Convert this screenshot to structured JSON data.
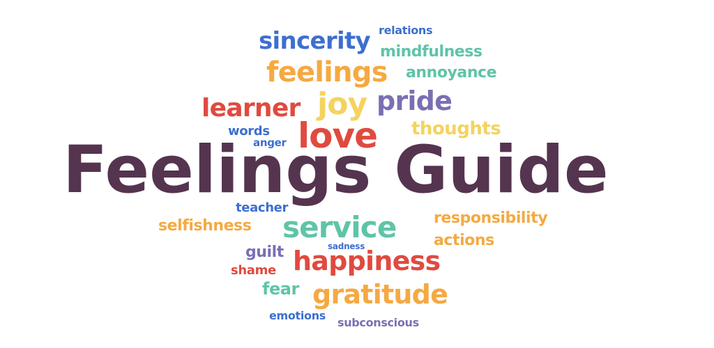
{
  "title": "Feelings Guide",
  "colors": {
    "plum": "#55344f",
    "blue": "#3d6fcf",
    "orange": "#f5a942",
    "teal": "#5ec4a8",
    "red": "#e04a3f",
    "yellow": "#f4d35e",
    "purple": "#7b6fb3"
  },
  "words": {
    "sincerity": "sincerity",
    "relations": "relations",
    "mindfulness": "mindfulness",
    "feelings": "feelings",
    "annoyance": "annoyance",
    "learner": "learner",
    "joy": "joy",
    "pride": "pride",
    "love": "love",
    "thoughts": "thoughts",
    "words": "words",
    "anger": "anger",
    "teacher": "teacher",
    "selfishness": "selfishness",
    "service": "service",
    "responsibility": "responsibility",
    "actions": "actions",
    "guilt": "guilt",
    "sadness": "sadness",
    "happiness": "happiness",
    "shame": "shame",
    "fear": "fear",
    "gratitude": "gratitude",
    "emotions": "emotions",
    "subconscious": "subconscious"
  }
}
